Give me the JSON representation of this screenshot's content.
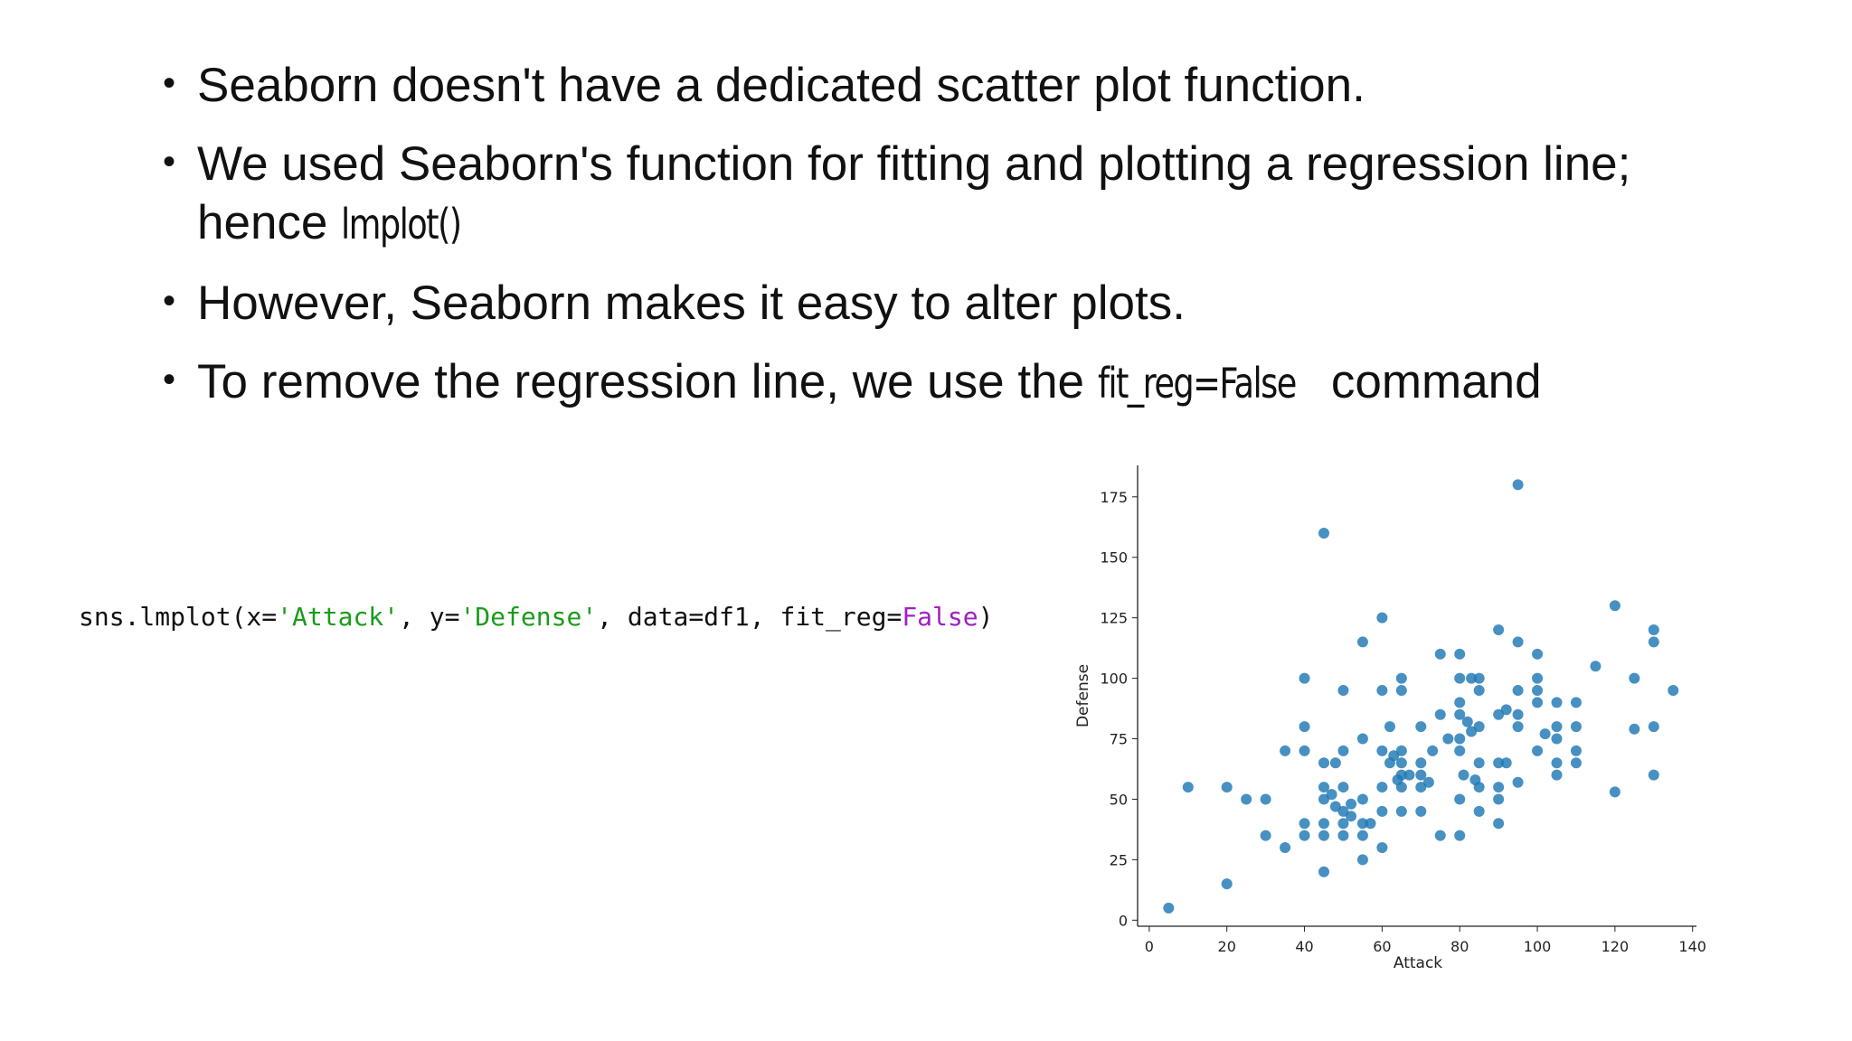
{
  "bullets": [
    [
      "Seaborn doesn't have a dedicated scatter plot function."
    ],
    [
      "We used Seaborn's function for fitting and plotting a regression line; hence ",
      "lmplot()"
    ],
    [
      "However, Seaborn makes it easy to alter plots."
    ],
    [
      "To remove the regression line, we use the ",
      "fit_reg=False",
      " command"
    ]
  ],
  "code": [
    "sns.lmplot(x=",
    "'Attack'",
    ", y=",
    "'Defense'",
    ", data=df1, fit_reg=",
    "False",
    ")"
  ],
  "chart_data": {
    "type": "scatter",
    "xlabel": "Attack",
    "ylabel": "Defense",
    "color": "#1f77b4",
    "x": [
      5,
      10,
      20,
      20,
      25,
      30,
      30,
      35,
      35,
      40,
      40,
      40,
      40,
      40,
      45,
      45,
      45,
      45,
      45,
      45,
      45,
      47,
      48,
      48,
      50,
      50,
      50,
      50,
      50,
      50,
      52,
      52,
      55,
      55,
      55,
      55,
      55,
      55,
      57,
      60,
      60,
      60,
      60,
      60,
      60,
      62,
      62,
      63,
      64,
      65,
      65,
      65,
      65,
      65,
      65,
      65,
      67,
      70,
      70,
      70,
      70,
      70,
      72,
      73,
      75,
      75,
      75,
      77,
      80,
      80,
      80,
      80,
      80,
      80,
      80,
      80,
      81,
      82,
      83,
      83,
      84,
      85,
      85,
      85,
      85,
      85,
      85,
      90,
      90,
      90,
      90,
      90,
      90,
      92,
      92,
      95,
      95,
      95,
      95,
      95,
      95,
      100,
      100,
      100,
      100,
      100,
      102,
      105,
      105,
      105,
      105,
      105,
      110,
      110,
      110,
      110,
      115,
      120,
      120,
      125,
      125,
      130,
      130,
      130,
      130,
      135
    ],
    "values": [
      5,
      55,
      55,
      15,
      50,
      50,
      35,
      30,
      70,
      100,
      80,
      70,
      40,
      35,
      160,
      65,
      55,
      50,
      40,
      35,
      20,
      52,
      65,
      47,
      95,
      70,
      55,
      45,
      40,
      35,
      48,
      43,
      115,
      75,
      50,
      40,
      35,
      25,
      40,
      125,
      95,
      70,
      55,
      45,
      30,
      80,
      65,
      68,
      58,
      100,
      95,
      70,
      65,
      60,
      55,
      45,
      60,
      80,
      65,
      60,
      55,
      45,
      57,
      70,
      110,
      85,
      35,
      75,
      110,
      100,
      90,
      85,
      75,
      70,
      50,
      35,
      60,
      82,
      100,
      78,
      58,
      100,
      95,
      80,
      65,
      55,
      45,
      120,
      85,
      65,
      55,
      50,
      40,
      87,
      65,
      180,
      115,
      95,
      85,
      80,
      57,
      110,
      100,
      95,
      90,
      70,
      77,
      90,
      80,
      75,
      65,
      60,
      90,
      80,
      70,
      65,
      105,
      130,
      53,
      100,
      79,
      120,
      115,
      80,
      60,
      95
    ],
    "xlim": [
      -3,
      141
    ],
    "ylim": [
      -2.5,
      188
    ],
    "xticks": [
      0,
      20,
      40,
      60,
      80,
      100,
      120,
      140
    ],
    "yticks": [
      0,
      25,
      50,
      75,
      100,
      125,
      150,
      175
    ]
  }
}
